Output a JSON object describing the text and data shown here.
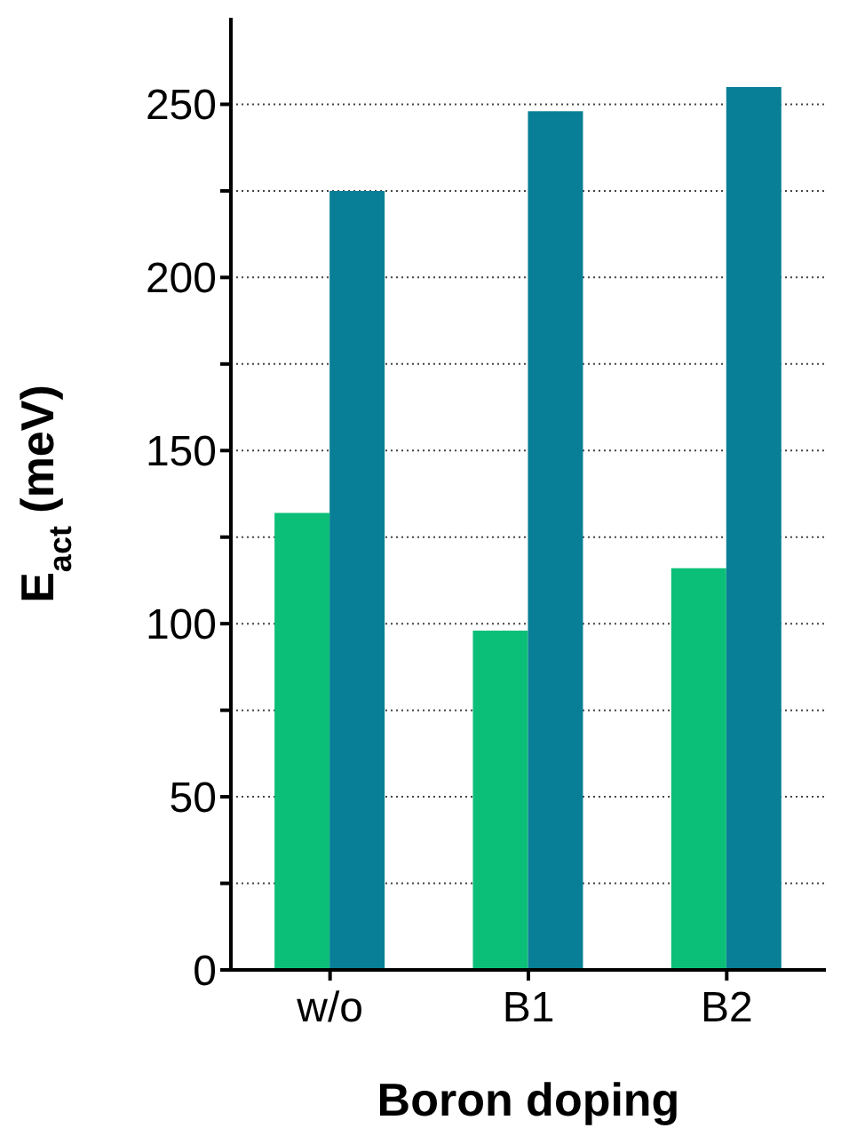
{
  "chart_data": {
    "type": "bar",
    "categories": [
      "w/o",
      "B1",
      "B2"
    ],
    "series": [
      {
        "color": "#0bbf78",
        "values": [
          132,
          98,
          116
        ]
      },
      {
        "color": "#087f96",
        "values": [
          225,
          248,
          255
        ]
      }
    ],
    "xlabel": "Boron doping",
    "ylabel": "E$_{act}$ (meV)",
    "ylim": [
      0,
      275
    ],
    "yticks": [
      0,
      {
        "value": 25,
        "label": null
      },
      50,
      {
        "value": 75,
        "label": null
      },
      100,
      {
        "value": 125,
        "label": null
      },
      150,
      {
        "value": 175,
        "label": null
      },
      200,
      {
        "value": 225,
        "label": null
      },
      250
    ],
    "grid": "y"
  }
}
